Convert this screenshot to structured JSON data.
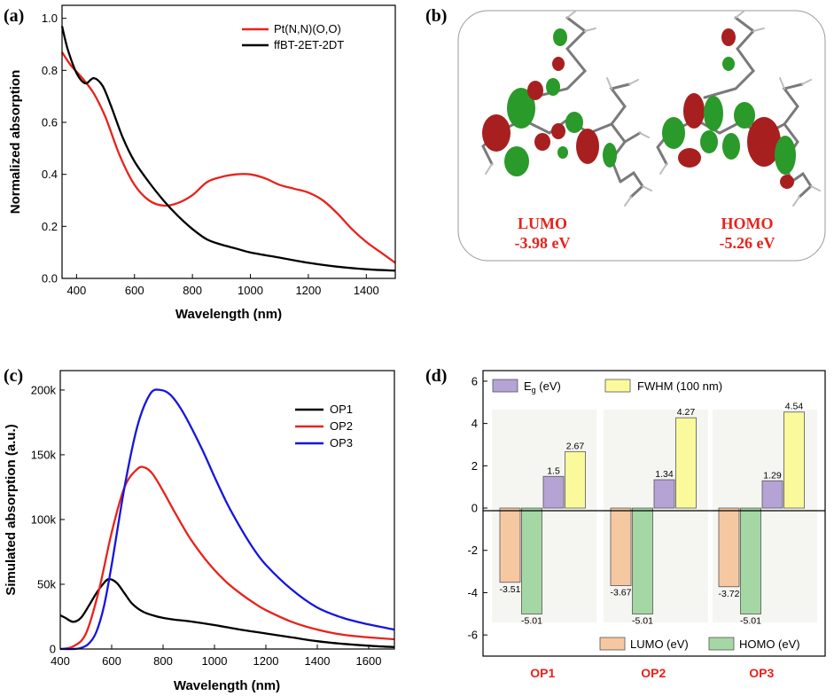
{
  "panels": {
    "a": "(a)",
    "b": "(b)",
    "c": "(c)",
    "d": "(d)"
  },
  "colors": {
    "red": "#e8221b",
    "black": "#000000",
    "blue": "#1515e0",
    "purple": "#b5a3d6",
    "yellow": "#fafa9c",
    "orange": "#f6c8a2",
    "green": "#a5d7a5",
    "lobe_red": "#a81f1f",
    "lobe_green": "#2a9a2a"
  },
  "chart_data": [
    {
      "id": "a",
      "type": "line",
      "xlabel": "Wavelength (nm)",
      "ylabel": "Normalized absorption",
      "xlim": [
        350,
        1500
      ],
      "ylim": [
        0,
        1.05
      ],
      "xticks": [
        400,
        600,
        800,
        1000,
        1200,
        1400
      ],
      "yticks": [
        0.0,
        0.2,
        0.4,
        0.6,
        0.8,
        1.0
      ],
      "ytick_labels": [
        "0.0",
        "0.2",
        "0.4",
        "0.6",
        "0.8",
        "1.0"
      ],
      "legend_position": "top-right",
      "series": [
        {
          "name": "Pt(N,N)(O,O)",
          "color": "#e8221b",
          "x": [
            350,
            380,
            420,
            460,
            500,
            550,
            600,
            650,
            700,
            750,
            800,
            850,
            900,
            950,
            1000,
            1050,
            1100,
            1150,
            1200,
            1250,
            1300,
            1350,
            1400,
            1450,
            1500
          ],
          "y": [
            0.87,
            0.82,
            0.77,
            0.71,
            0.62,
            0.47,
            0.36,
            0.3,
            0.28,
            0.29,
            0.32,
            0.37,
            0.39,
            0.4,
            0.4,
            0.385,
            0.36,
            0.345,
            0.33,
            0.3,
            0.25,
            0.19,
            0.14,
            0.1,
            0.06
          ]
        },
        {
          "name": "ffBT-2ET-2DT",
          "color": "#000000",
          "x": [
            350,
            370,
            400,
            430,
            460,
            490,
            520,
            560,
            600,
            650,
            700,
            750,
            800,
            850,
            900,
            950,
            1000,
            1100,
            1200,
            1300,
            1400,
            1500
          ],
          "y": [
            0.97,
            0.88,
            0.79,
            0.75,
            0.77,
            0.74,
            0.66,
            0.54,
            0.45,
            0.37,
            0.3,
            0.24,
            0.19,
            0.15,
            0.13,
            0.115,
            0.1,
            0.08,
            0.06,
            0.045,
            0.035,
            0.03
          ]
        }
      ]
    },
    {
      "id": "b",
      "type": "other",
      "orbitals": [
        {
          "name": "LUMO",
          "energy": "-3.98 eV"
        },
        {
          "name": "HOMO",
          "energy": "-5.26 eV"
        }
      ]
    },
    {
      "id": "c",
      "type": "line",
      "xlabel": "Wavelength (nm)",
      "ylabel": "Simulated absorption (a.u.)",
      "xlim": [
        400,
        1700
      ],
      "ylim": [
        0,
        215000
      ],
      "xticks": [
        400,
        600,
        800,
        1000,
        1200,
        1400,
        1600
      ],
      "yticks": [
        0,
        50000,
        100000,
        150000,
        200000
      ],
      "ytick_labels": [
        "0",
        "50k",
        "100k",
        "150k",
        "200k"
      ],
      "legend_position": "top-right",
      "series": [
        {
          "name": "OP1",
          "color": "#000000",
          "x": [
            400,
            420,
            450,
            480,
            510,
            540,
            570,
            590,
            620,
            650,
            680,
            720,
            760,
            800,
            850,
            900,
            1000,
            1100,
            1200,
            1300,
            1400,
            1500,
            1600,
            1700
          ],
          "y": [
            26000,
            24000,
            21000,
            24000,
            33000,
            43000,
            51000,
            54000,
            51000,
            43000,
            35000,
            29000,
            26000,
            24000,
            22500,
            21500,
            18500,
            15000,
            12000,
            9000,
            6000,
            4000,
            2500,
            1500
          ]
        },
        {
          "name": "OP2",
          "color": "#e8221b",
          "x": [
            400,
            450,
            500,
            550,
            600,
            650,
            700,
            730,
            760,
            800,
            850,
            900,
            950,
            1000,
            1050,
            1100,
            1150,
            1200,
            1300,
            1400,
            1500,
            1600,
            1700
          ],
          "y": [
            0,
            2000,
            12000,
            45000,
            90000,
            125000,
            139000,
            140000,
            135000,
            122000,
            104000,
            87000,
            73000,
            61000,
            51000,
            43000,
            36000,
            30000,
            21000,
            15000,
            11000,
            9000,
            7500
          ]
        },
        {
          "name": "OP3",
          "color": "#1515e0",
          "x": [
            400,
            450,
            480,
            510,
            540,
            570,
            600,
            650,
            700,
            750,
            790,
            830,
            880,
            950,
            1000,
            1050,
            1100,
            1150,
            1200,
            1300,
            1400,
            1500,
            1600,
            1700
          ],
          "y": [
            0,
            0,
            800,
            4000,
            13000,
            33000,
            65000,
            125000,
            172000,
            197000,
            200000,
            196000,
            182000,
            155000,
            133000,
            112000,
            94000,
            78000,
            65000,
            46000,
            32000,
            24000,
            19000,
            15000
          ]
        }
      ]
    },
    {
      "id": "d",
      "type": "bar",
      "categories": [
        "OP1",
        "OP2",
        "OP3"
      ],
      "ylim": [
        -7,
        6.5
      ],
      "yticks": [
        -6,
        -4,
        -2,
        0,
        2,
        4,
        6
      ],
      "ytick_labels": [
        "-6",
        "-4",
        "-2",
        "0",
        "2",
        "4",
        "6"
      ],
      "legend_position": "top-left and bottom-right",
      "series": [
        {
          "name": "LUMO (eV)",
          "color": "#f6c8a2",
          "values": [
            -3.51,
            -3.67,
            -3.72
          ],
          "labels": [
            "-3.51",
            "-3.67",
            "-3.72"
          ]
        },
        {
          "name": "HOMO (eV)",
          "color": "#a5d7a5",
          "values": [
            -5.01,
            -5.01,
            -5.01
          ],
          "labels": [
            "-5.01",
            "-5.01",
            "-5.01"
          ]
        },
        {
          "name": "Eg (eV)",
          "name_main": "E",
          "name_sub": "g",
          "name_rest": " (eV)",
          "color": "#b5a3d6",
          "values": [
            1.5,
            1.34,
            1.29
          ],
          "labels": [
            "1.5",
            "1.34",
            "1.29"
          ]
        },
        {
          "name": "FWHM (100 nm)",
          "color": "#fafa9c",
          "values": [
            2.67,
            4.27,
            4.54
          ],
          "labels": [
            "2.67",
            "4.27",
            "4.54"
          ]
        }
      ]
    }
  ]
}
